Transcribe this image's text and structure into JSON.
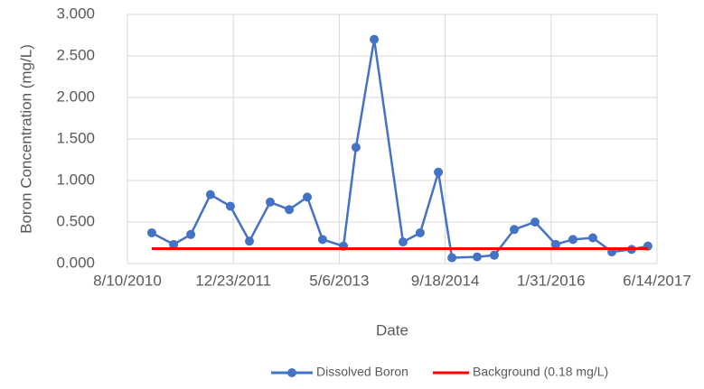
{
  "chart_data": {
    "type": "line",
    "y_label": "Boron Concentration  (mg/L)",
    "x_label": "Date",
    "xlim": [
      "8/10/2010",
      "6/14/2017"
    ],
    "xticks": [
      "8/10/2010",
      "12/23/2011",
      "5/6/2013",
      "9/18/2014",
      "1/31/2016",
      "6/14/2017"
    ],
    "ylim": [
      0,
      3
    ],
    "yticks": [
      {
        "value": 0,
        "label": "0.000"
      },
      {
        "value": 0.5,
        "label": "0.500"
      },
      {
        "value": 1,
        "label": "1.000"
      },
      {
        "value": 1.5,
        "label": "1.500"
      },
      {
        "value": 2,
        "label": "2.000"
      },
      {
        "value": 2.5,
        "label": "2.500"
      },
      {
        "value": 3,
        "label": "3.000"
      }
    ],
    "grid": true,
    "series": [
      {
        "name": "Dissolved Boron",
        "color": "#4472c4",
        "markers": true,
        "x": [
          "12/3/2010",
          "3/16/2011",
          "6/5/2011",
          "9/6/2011",
          "12/9/2011",
          "3/8/2012",
          "6/14/2012",
          "9/12/2012",
          "12/6/2012",
          "2/16/2013",
          "5/26/2013",
          "7/24/2013",
          "10/18/2013",
          "3/3/2014",
          "5/23/2014",
          "8/17/2014",
          "10/20/2014",
          "2/16/2015",
          "5/8/2015",
          "8/10/2015",
          "11/16/2015",
          "2/22/2016",
          "5/13/2016",
          "8/15/2016",
          "11/13/2016",
          "2/14/2017",
          "5/2/2017"
        ],
        "values": [
          0.37,
          0.23,
          0.35,
          0.83,
          0.69,
          0.27,
          0.74,
          0.65,
          0.8,
          0.29,
          0.21,
          1.4,
          2.7,
          0.26,
          0.37,
          1.1,
          0.07,
          0.08,
          0.1,
          0.41,
          0.5,
          0.23,
          0.29,
          0.31,
          0.14,
          0.17,
          0.21
        ]
      },
      {
        "name": "Background (0.18 mg/L)",
        "color": "#ff0000",
        "markers": false,
        "x": [
          "12/3/2010",
          "5/2/2017"
        ],
        "values": [
          0.18,
          0.18
        ]
      }
    ]
  }
}
